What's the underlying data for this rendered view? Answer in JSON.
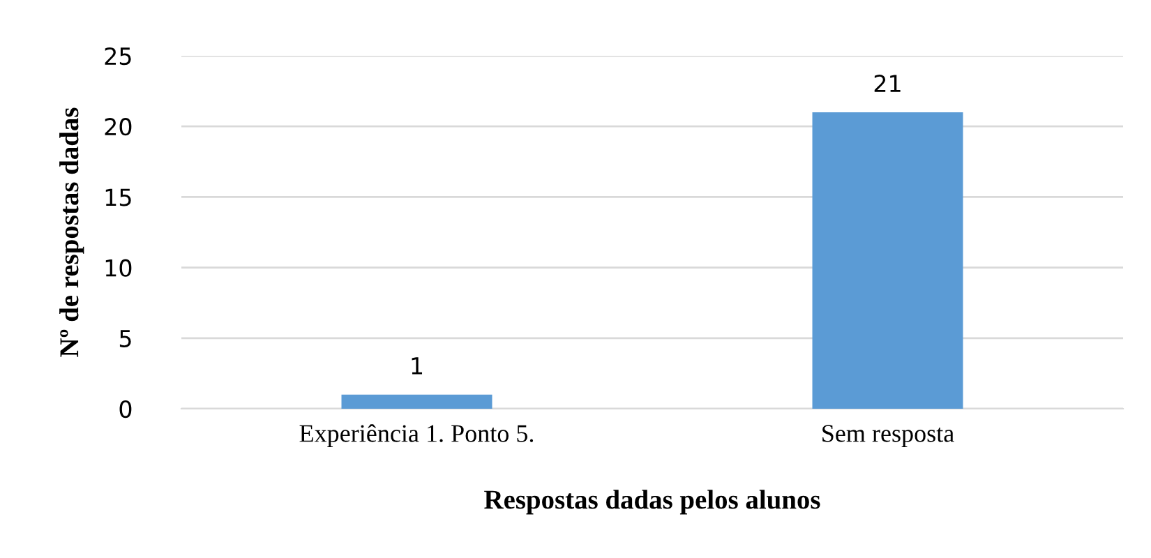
{
  "chart_data": {
    "type": "bar",
    "xlabel": "Respostas dadas pelos alunos",
    "ylabel": "Nº de respostas dadas",
    "categories": [
      "Experiência 1. Ponto 5.",
      "Sem resposta"
    ],
    "values": [
      1,
      21
    ],
    "color": "#5b9bd5",
    "ylim": [
      0,
      25
    ],
    "yticks": [
      0,
      5,
      10,
      15,
      20,
      25
    ],
    "grid": "y",
    "data_labels": true,
    "legend": false
  }
}
